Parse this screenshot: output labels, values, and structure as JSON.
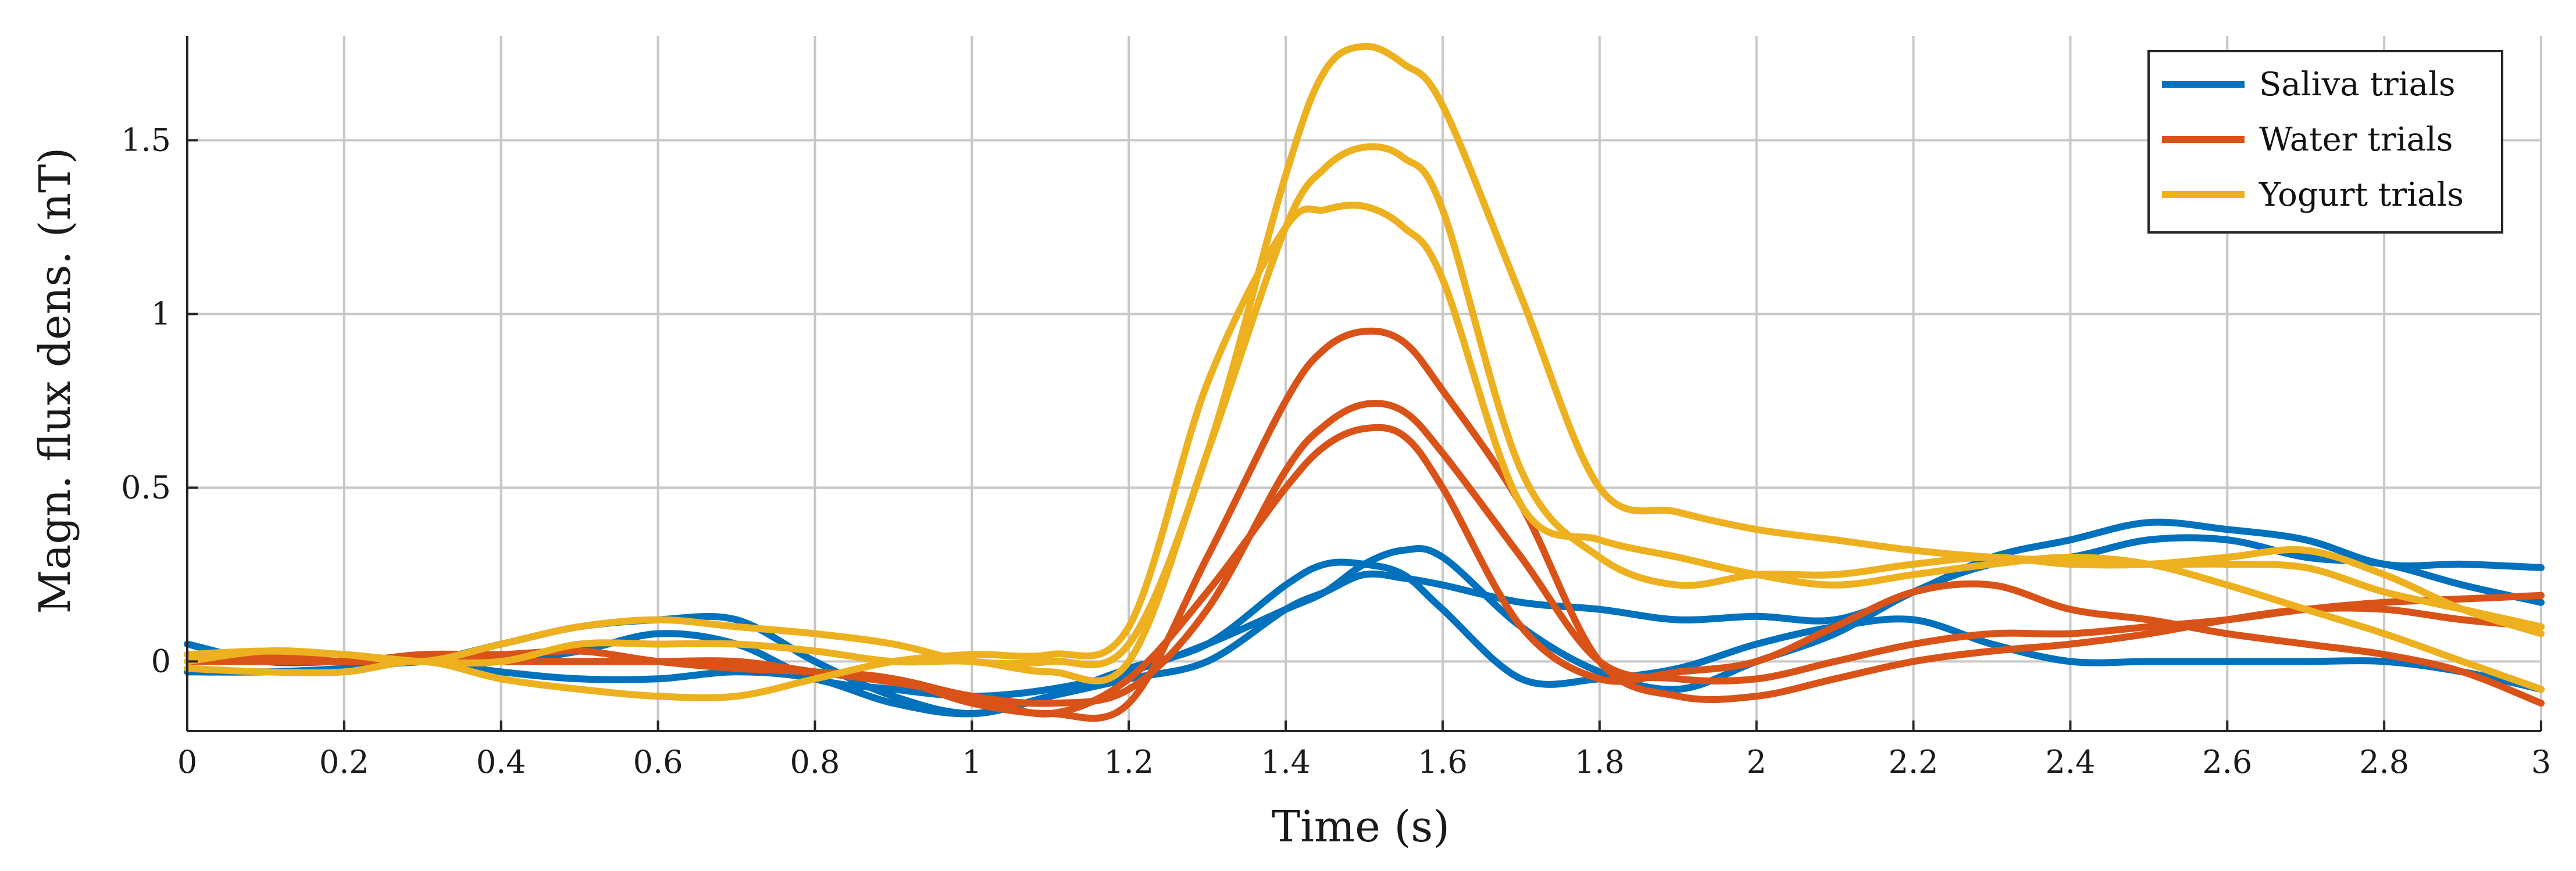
{
  "chart_data": {
    "type": "line",
    "title": "",
    "xlabel": "Time (s)",
    "ylabel": "Magn. flux dens. (nT)",
    "xlim": [
      0,
      3
    ],
    "ylim": [
      -0.2,
      1.8
    ],
    "xticks": [
      0,
      0.2,
      0.4,
      0.6,
      0.8,
      1,
      1.2,
      1.4,
      1.6,
      1.8,
      2,
      2.2,
      2.4,
      2.6,
      2.8,
      3
    ],
    "xtick_labels": [
      "0",
      "0.2",
      "0.4",
      "0.6",
      "0.8",
      "1",
      "1.2",
      "1.4",
      "1.6",
      "1.8",
      "2",
      "2.2",
      "2.4",
      "2.6",
      "2.8",
      "3"
    ],
    "yticks": [
      0,
      0.5,
      1,
      1.5
    ],
    "ytick_labels": [
      "0",
      "0.5",
      "1",
      "1.5"
    ],
    "grid": true,
    "legend": {
      "position": "top-right",
      "entries": [
        {
          "name": "Saliva trials",
          "color": "#0072BD"
        },
        {
          "name": "Water trials",
          "color": "#D95319"
        },
        {
          "name": "Yogurt trials",
          "color": "#EDB120"
        }
      ]
    },
    "x": [
      0,
      0.1,
      0.2,
      0.3,
      0.4,
      0.5,
      0.6,
      0.7,
      0.8,
      0.9,
      1.0,
      1.1,
      1.2,
      1.3,
      1.4,
      1.45,
      1.5,
      1.55,
      1.6,
      1.7,
      1.8,
      1.9,
      2.0,
      2.1,
      2.2,
      2.3,
      2.4,
      2.5,
      2.6,
      2.7,
      2.8,
      2.9,
      3.0
    ],
    "series": [
      {
        "group": "Saliva trials",
        "color": "#0072BD",
        "values": [
          0.05,
          0.0,
          0.0,
          0.0,
          0.05,
          0.1,
          0.12,
          0.12,
          0.0,
          -0.1,
          -0.15,
          -0.1,
          -0.05,
          0.0,
          0.15,
          0.2,
          0.25,
          0.24,
          0.22,
          0.17,
          0.15,
          0.12,
          0.13,
          0.12,
          0.2,
          0.3,
          0.35,
          0.4,
          0.38,
          0.35,
          0.28,
          0.28,
          0.27
        ]
      },
      {
        "group": "Saliva trials",
        "color": "#0072BD",
        "values": [
          -0.03,
          -0.03,
          -0.02,
          0.0,
          0.0,
          0.03,
          0.08,
          0.05,
          -0.05,
          -0.08,
          -0.1,
          -0.08,
          -0.03,
          0.05,
          0.15,
          0.2,
          0.28,
          0.32,
          0.3,
          0.1,
          -0.03,
          -0.08,
          0.0,
          0.08,
          0.2,
          0.28,
          0.3,
          0.35,
          0.35,
          0.3,
          0.28,
          0.22,
          0.17
        ]
      },
      {
        "group": "Saliva trials",
        "color": "#0072BD",
        "values": [
          0.0,
          0.0,
          0.0,
          0.0,
          -0.03,
          -0.05,
          -0.05,
          -0.03,
          -0.05,
          -0.12,
          -0.15,
          -0.1,
          -0.02,
          0.05,
          0.22,
          0.28,
          0.28,
          0.25,
          0.15,
          -0.05,
          -0.05,
          -0.02,
          0.05,
          0.1,
          0.12,
          0.05,
          0.0,
          0.0,
          0.0,
          0.0,
          0.0,
          -0.03,
          -0.08
        ]
      },
      {
        "group": "Water trials",
        "color": "#D95319",
        "values": [
          0.0,
          0.0,
          0.0,
          0.0,
          0.0,
          0.0,
          0.0,
          -0.02,
          -0.03,
          -0.05,
          -0.1,
          -0.12,
          -0.08,
          0.15,
          0.55,
          0.68,
          0.74,
          0.72,
          0.6,
          0.3,
          0.0,
          -0.05,
          -0.05,
          0.0,
          0.05,
          0.08,
          0.08,
          0.1,
          0.12,
          0.15,
          0.17,
          0.18,
          0.19
        ]
      },
      {
        "group": "Water trials",
        "color": "#D95319",
        "values": [
          0.0,
          0.02,
          0.0,
          0.02,
          0.02,
          0.03,
          0.0,
          -0.02,
          -0.03,
          -0.05,
          -0.12,
          -0.15,
          -0.12,
          0.3,
          0.75,
          0.9,
          0.95,
          0.92,
          0.78,
          0.45,
          0.0,
          -0.1,
          -0.1,
          -0.05,
          0.0,
          0.03,
          0.05,
          0.08,
          0.12,
          0.15,
          0.15,
          0.12,
          0.1
        ]
      },
      {
        "group": "Water trials",
        "color": "#D95319",
        "values": [
          0.0,
          0.0,
          0.0,
          0.0,
          0.0,
          0.0,
          0.0,
          0.0,
          -0.03,
          -0.06,
          -0.1,
          -0.15,
          -0.05,
          0.2,
          0.5,
          0.62,
          0.67,
          0.65,
          0.5,
          0.1,
          -0.05,
          -0.03,
          0.0,
          0.1,
          0.2,
          0.22,
          0.15,
          0.12,
          0.08,
          0.05,
          0.02,
          -0.03,
          -0.12
        ]
      },
      {
        "group": "Yogurt trials",
        "color": "#EDB120",
        "values": [
          0.0,
          0.03,
          0.02,
          0.0,
          0.05,
          0.1,
          0.12,
          0.1,
          0.08,
          0.05,
          0.0,
          0.0,
          0.05,
          0.6,
          1.4,
          1.7,
          1.77,
          1.72,
          1.6,
          1.05,
          0.5,
          0.43,
          0.38,
          0.35,
          0.32,
          0.3,
          0.29,
          0.28,
          0.28,
          0.27,
          0.2,
          0.15,
          0.1
        ]
      },
      {
        "group": "Yogurt trials",
        "color": "#EDB120",
        "values": [
          0.02,
          0.03,
          0.02,
          0.0,
          0.0,
          0.05,
          0.05,
          0.05,
          0.03,
          0.0,
          0.0,
          -0.03,
          0.0,
          0.6,
          1.25,
          1.42,
          1.48,
          1.45,
          1.3,
          0.55,
          0.3,
          0.22,
          0.25,
          0.25,
          0.28,
          0.3,
          0.28,
          0.28,
          0.3,
          0.32,
          0.25,
          0.15,
          0.08
        ]
      },
      {
        "group": "Yogurt trials",
        "color": "#EDB120",
        "values": [
          -0.02,
          -0.03,
          -0.03,
          0.0,
          -0.05,
          -0.08,
          -0.1,
          -0.1,
          -0.05,
          0.0,
          0.02,
          0.02,
          0.1,
          0.8,
          1.25,
          1.3,
          1.31,
          1.25,
          1.1,
          0.45,
          0.35,
          0.3,
          0.25,
          0.22,
          0.25,
          0.28,
          0.3,
          0.28,
          0.22,
          0.15,
          0.08,
          0.0,
          -0.08
        ]
      }
    ]
  }
}
